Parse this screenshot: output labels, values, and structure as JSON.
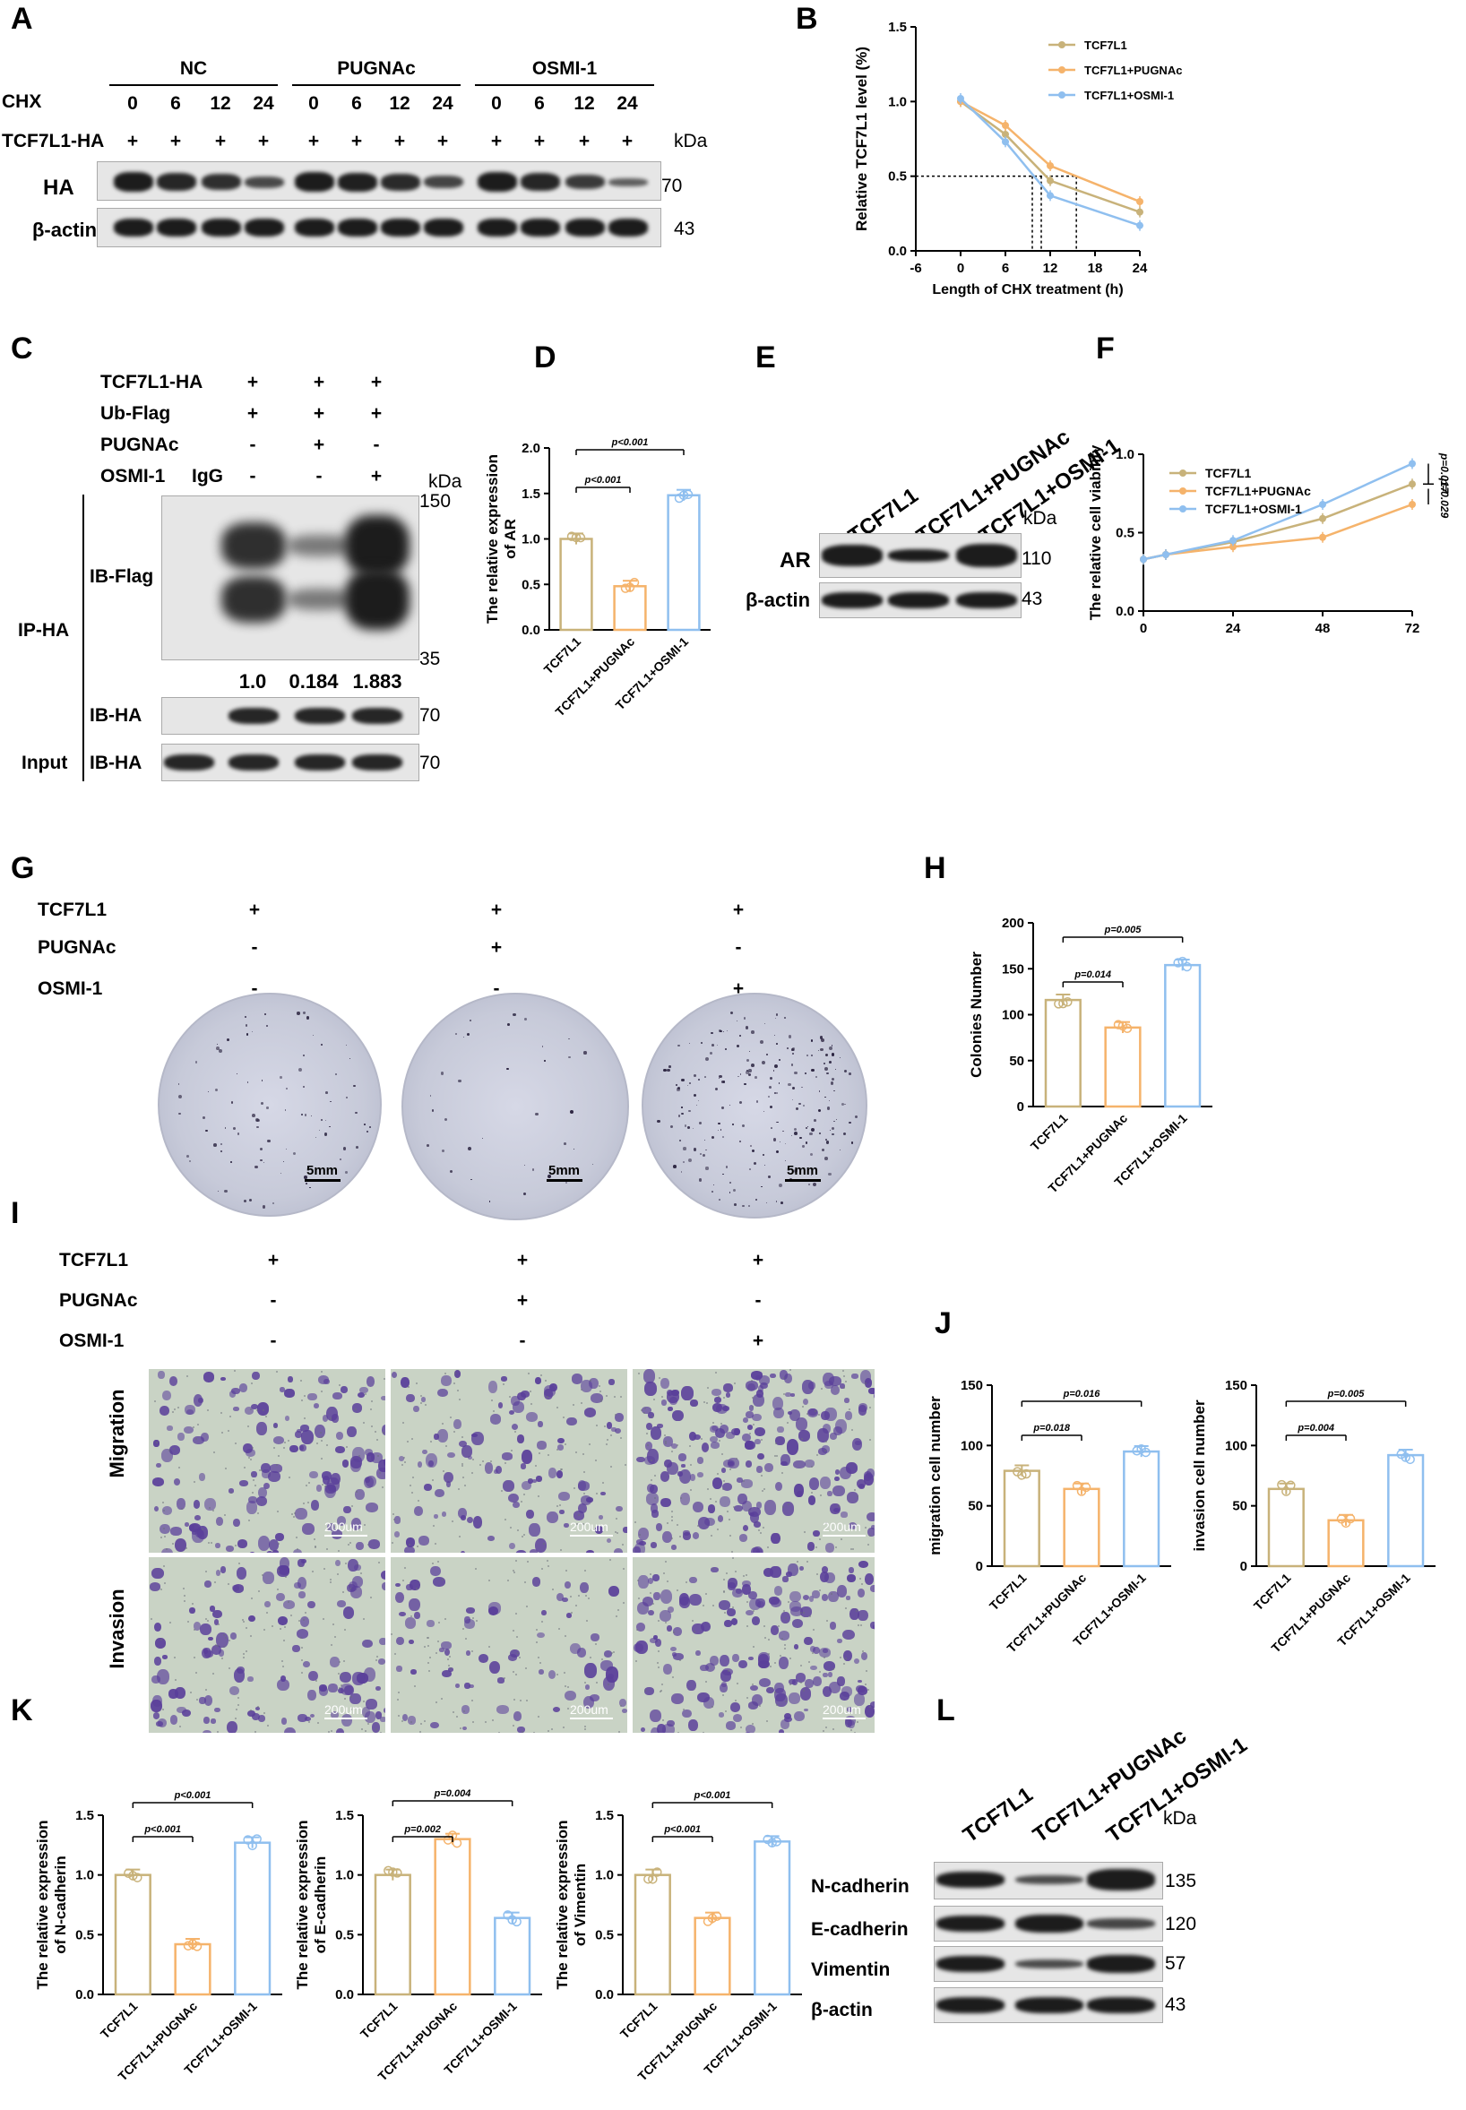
{
  "panels": {
    "A": "A",
    "B": "B",
    "C": "C",
    "D": "D",
    "E": "E",
    "F": "F",
    "G": "G",
    "H": "H",
    "I": "I",
    "J": "J",
    "K": "K",
    "L": "L"
  },
  "panelA": {
    "groups": [
      "NC",
      "PUGNAc",
      "OSMI-1"
    ],
    "chx_label": "CHX",
    "chx_values": [
      "0",
      "6",
      "12",
      "24",
      "0",
      "6",
      "12",
      "24",
      "0",
      "6",
      "12",
      "24"
    ],
    "tcf_label": "TCF7L1-HA",
    "plus": "+",
    "kda": "kDa",
    "rows": [
      "HA",
      "β-actin"
    ],
    "markers": [
      "70",
      "43"
    ]
  },
  "panelC": {
    "rows": [
      "TCF7L1-HA",
      "Ub-Flag",
      "PUGNAc",
      "OSMI-1"
    ],
    "igg": "IgG",
    "signs": [
      [
        "+",
        "+",
        "+"
      ],
      [
        "+",
        "+",
        "+"
      ],
      [
        "-",
        "+",
        "-"
      ],
      [
        "-",
        "-",
        "+"
      ]
    ],
    "kda": "kDa",
    "ip": "IP-HA",
    "input": "Input",
    "ib_flag": "IB-Flag",
    "ib_ha": "IB-HA",
    "ib_ha2": "IB-HA",
    "markers": [
      "150",
      "35",
      "70",
      "70"
    ],
    "quant": [
      "1.0",
      "0.184",
      "1.883"
    ]
  },
  "panelE": {
    "lanes": [
      "TCF7L1",
      "TCF7L1+PUGNAc",
      "TCF7L1+OSMI-1"
    ],
    "kda": "kDa",
    "rows": [
      "AR",
      "β-actin"
    ],
    "markers": [
      "110",
      "43"
    ]
  },
  "panelG": {
    "rows": [
      "TCF7L1",
      "PUGNAc",
      "OSMI-1"
    ],
    "signs": [
      [
        "+",
        "+",
        "+"
      ],
      [
        "-",
        "+",
        "-"
      ],
      [
        "-",
        "-",
        "+"
      ]
    ],
    "scale": "5mm"
  },
  "panelI": {
    "rows": [
      "TCF7L1",
      "PUGNAc",
      "OSMI-1"
    ],
    "signs": [
      [
        "+",
        "+",
        "+"
      ],
      [
        "-",
        "+",
        "-"
      ],
      [
        "-",
        "-",
        "+"
      ]
    ],
    "side": [
      "Migration",
      "Invasion"
    ],
    "scale": "200um"
  },
  "panelL": {
    "lanes": [
      "TCF7L1",
      "TCF7L1+PUGNAc",
      "TCF7L1+OSMI-1"
    ],
    "kda": "kDa",
    "rows": [
      "N-cadherin",
      "E-cadherin",
      "Vimentin",
      "β-actin"
    ],
    "markers": [
      "135",
      "120",
      "57",
      "43"
    ]
  },
  "colors": {
    "tcf": "#c8b27a",
    "pug": "#f5b36b",
    "osmi": "#8fbfef"
  },
  "chart_data": [
    {
      "panel": "B",
      "type": "line",
      "xlabel": "Length of CHX treatment (h)",
      "ylabel": "Relative TCF7L1 level (%)",
      "x": [
        0,
        6,
        12,
        24
      ],
      "xticks": [
        -6,
        0,
        6,
        12,
        18,
        24
      ],
      "yticks": [
        0.0,
        0.5,
        1.0,
        1.5
      ],
      "xlim": [
        -6,
        24
      ],
      "ylim": [
        0,
        1.5
      ],
      "series": [
        {
          "name": "TCF7L1",
          "values": [
            1.0,
            0.78,
            0.47,
            0.26
          ]
        },
        {
          "name": "TCF7L1+PUGNAc",
          "values": [
            1.0,
            0.84,
            0.57,
            0.33
          ]
        },
        {
          "name": "TCF7L1+OSMI-1",
          "values": [
            1.02,
            0.73,
            0.37,
            0.17
          ]
        }
      ],
      "threshold": 0.5,
      "legend": "top-right"
    },
    {
      "panel": "D",
      "type": "bar",
      "ylabel": "The relative expression of AR",
      "categories": [
        "TCF7L1",
        "TCF7L1+PUGNAc",
        "TCF7L1+OSMI-1"
      ],
      "values": [
        1.0,
        0.48,
        1.48
      ],
      "yticks": [
        0.0,
        0.5,
        1.0,
        1.5,
        2.0
      ],
      "ylim": [
        0,
        2.0
      ],
      "sig": [
        {
          "a": 0,
          "b": 1,
          "p": "p<0.001"
        },
        {
          "a": 0,
          "b": 2,
          "p": "p<0.001"
        }
      ]
    },
    {
      "panel": "F",
      "type": "line",
      "ylabel": "The relative cell viability",
      "x": [
        0,
        6,
        24,
        48,
        72
      ],
      "xticks": [
        0,
        24,
        48,
        72
      ],
      "yticks": [
        0.0,
        0.5,
        1.0
      ],
      "xlim": [
        0,
        72
      ],
      "ylim": [
        0,
        1.0
      ],
      "series": [
        {
          "name": "TCF7L1",
          "values": [
            0.33,
            0.36,
            0.44,
            0.59,
            0.81
          ]
        },
        {
          "name": "TCF7L1+PUGNAc",
          "values": [
            0.33,
            0.36,
            0.41,
            0.47,
            0.68
          ]
        },
        {
          "name": "TCF7L1+OSMI-1",
          "values": [
            0.33,
            0.36,
            0.45,
            0.68,
            0.94
          ]
        }
      ],
      "sig": [
        "p=0.017",
        "p=0.029"
      ],
      "legend": "top-left"
    },
    {
      "panel": "H",
      "type": "bar",
      "ylabel": "Colonies Number",
      "categories": [
        "TCF7L1",
        "TCF7L1+PUGNAc",
        "TCF7L1+OSMI-1"
      ],
      "values": [
        116,
        86,
        154
      ],
      "yticks": [
        0,
        50,
        100,
        150,
        200
      ],
      "ylim": [
        0,
        200
      ],
      "sig": [
        {
          "a": 0,
          "b": 1,
          "p": "p=0.014"
        },
        {
          "a": 0,
          "b": 2,
          "p": "p=0.005"
        }
      ]
    },
    {
      "panel": "J1",
      "type": "bar",
      "ylabel": "migration cell number",
      "categories": [
        "TCF7L1",
        "TCF7L1+PUGNAc",
        "TCF7L1+OSMI-1"
      ],
      "values": [
        79,
        64,
        95
      ],
      "yticks": [
        0,
        50,
        100,
        150
      ],
      "ylim": [
        0,
        150
      ],
      "sig": [
        {
          "a": 0,
          "b": 1,
          "p": "p=0.018"
        },
        {
          "a": 0,
          "b": 2,
          "p": "p=0.016"
        }
      ]
    },
    {
      "panel": "J2",
      "type": "bar",
      "ylabel": "invasion cell number",
      "categories": [
        "TCF7L1",
        "TCF7L1+PUGNAc",
        "TCF7L1+OSMI-1"
      ],
      "values": [
        64,
        38,
        92
      ],
      "yticks": [
        0,
        50,
        100,
        150
      ],
      "ylim": [
        0,
        150
      ],
      "sig": [
        {
          "a": 0,
          "b": 1,
          "p": "p=0.004"
        },
        {
          "a": 0,
          "b": 2,
          "p": "p=0.005"
        }
      ]
    },
    {
      "panel": "K1",
      "type": "bar",
      "ylabel": "The relative expression of N-cadherin",
      "categories": [
        "TCF7L1",
        "TCF7L1+PUGNAc",
        "TCF7L1+OSMI-1"
      ],
      "values": [
        1.0,
        0.42,
        1.27
      ],
      "yticks": [
        0.0,
        0.5,
        1.0,
        1.5
      ],
      "ylim": [
        0,
        1.5
      ],
      "sig": [
        {
          "a": 0,
          "b": 1,
          "p": "p<0.001"
        },
        {
          "a": 0,
          "b": 2,
          "p": "p<0.001"
        }
      ]
    },
    {
      "panel": "K2",
      "type": "bar",
      "ylabel": "The relative expression of E-cadherin",
      "categories": [
        "TCF7L1",
        "TCF7L1+PUGNAc",
        "TCF7L1+OSMI-1"
      ],
      "values": [
        1.0,
        1.3,
        0.64
      ],
      "yticks": [
        0.0,
        0.5,
        1.0,
        1.5
      ],
      "ylim": [
        0,
        1.5
      ],
      "sig": [
        {
          "a": 0,
          "b": 1,
          "p": "p=0.002"
        },
        {
          "a": 0,
          "b": 2,
          "p": "p=0.004"
        }
      ]
    },
    {
      "panel": "K3",
      "type": "bar",
      "ylabel": "The relative expression of Vimentin",
      "categories": [
        "TCF7L1",
        "TCF7L1+PUGNAc",
        "TCF7L1+OSMI-1"
      ],
      "values": [
        1.0,
        0.64,
        1.28
      ],
      "yticks": [
        0.0,
        0.5,
        1.0,
        1.5
      ],
      "ylim": [
        0,
        1.5
      ],
      "sig": [
        {
          "a": 0,
          "b": 1,
          "p": "p<0.001"
        },
        {
          "a": 0,
          "b": 2,
          "p": "p<0.001"
        }
      ]
    }
  ]
}
